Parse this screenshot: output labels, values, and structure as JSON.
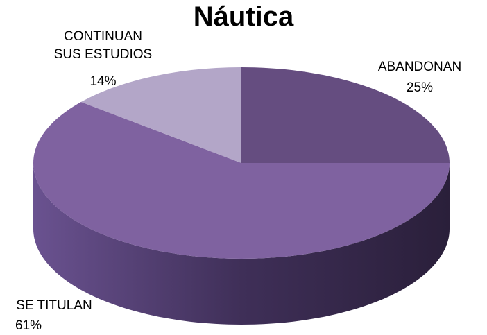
{
  "chart_data": {
    "type": "pie",
    "title": "Náutica",
    "categories": [
      "ABANDONAN",
      "SE TITULAN",
      "CONTINUAN SUS ESTUDIOS"
    ],
    "values": [
      25,
      61,
      14
    ],
    "value_labels": [
      "25%",
      "61%",
      "14%"
    ],
    "colors": [
      "#654d80",
      "#7f62a0",
      "#b3a6c8"
    ]
  }
}
